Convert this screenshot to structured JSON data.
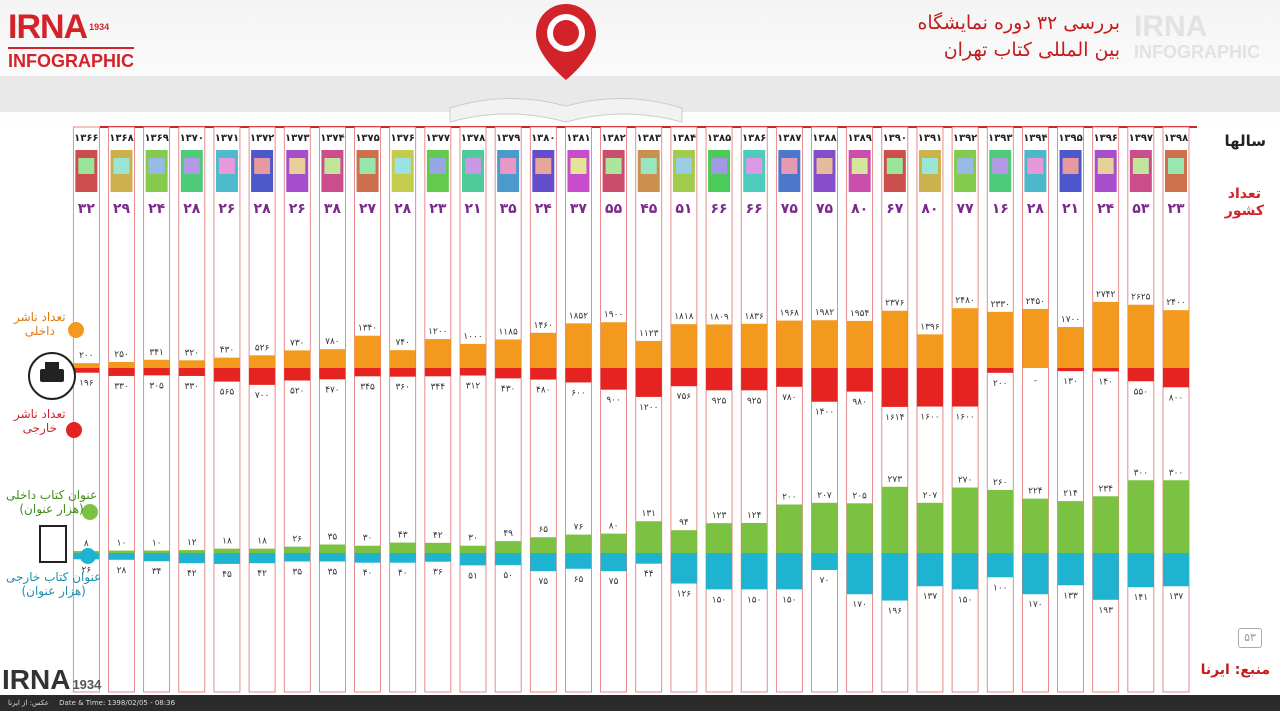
{
  "header": {
    "brand": "IRNA",
    "brand_year": "1934",
    "brand_sub": "INFOGRAPHIC",
    "title_line1": "بررسی ۳۲ دوره نمایشگاه",
    "title_line2": "بین المللی کتاب تهران"
  },
  "labels": {
    "years_label": "سالها",
    "countries_label_1": "تعداد",
    "countries_label_2": "کشور",
    "domestic_publishers_1": "تعداد ناشر",
    "domestic_publishers_2": "داخلی",
    "foreign_publishers_1": "تعداد ناشر",
    "foreign_publishers_2": "خارجی",
    "domestic_titles_1": "عنوان کتاب داخلی",
    "domestic_titles_2": "(هزار عنوان)",
    "foreign_titles_1": "عنوان کتاب خارجی",
    "foreign_titles_2": "(هزار عنوان)"
  },
  "footer": {
    "source": "منبع: ایرنا",
    "page_number": "۵۳",
    "bottom_brand": "IRNA",
    "bottom_year": "1934",
    "caption": "عکس: از ایرنا",
    "datetime": "Date & Time: 1398/02/05 - 08:36"
  },
  "colors": {
    "accent": "#d2232a",
    "domestic_publishers": "#f39a1e",
    "foreign_publishers": "#e52320",
    "domestic_titles": "#7cc242",
    "foreign_titles": "#1db3d1",
    "country_count": "#7b2a8c"
  },
  "chart_data": {
    "type": "bar",
    "categories": [
      "۱۳۶۶",
      "۱۳۶۸",
      "۱۳۶۹",
      "۱۳۷۰",
      "۱۳۷۱",
      "۱۳۷۲",
      "۱۳۷۳",
      "۱۳۷۴",
      "۱۳۷۵",
      "۱۳۷۶",
      "۱۳۷۷",
      "۱۳۷۸",
      "۱۳۷۹",
      "۱۳۸۰",
      "۱۳۸۱",
      "۱۳۸۲",
      "۱۳۸۳",
      "۱۳۸۴",
      "۱۳۸۵",
      "۱۳۸۶",
      "۱۳۸۷",
      "۱۳۸۸",
      "۱۳۸۹",
      "۱۳۹۰",
      "۱۳۹۱",
      "۱۳۹۲",
      "۱۳۹۳",
      "۱۳۹۴",
      "۱۳۹۵",
      "۱۳۹۶",
      "۱۳۹۷",
      "۱۳۹۸"
    ],
    "countries": [
      32,
      29,
      24,
      28,
      26,
      28,
      26,
      38,
      27,
      28,
      23,
      21,
      35,
      24,
      37,
      55,
      45,
      51,
      66,
      66,
      75,
      75,
      80,
      67,
      80,
      77,
      16,
      28,
      21,
      24,
      53,
      23
    ],
    "series": [
      {
        "name": "تعداد ناشر داخلی",
        "values": [
          200,
          250,
          341,
          320,
          430,
          526,
          730,
          780,
          1340,
          740,
          1200,
          1000,
          1185,
          1460,
          1852,
          1900,
          1123,
          1818,
          1809,
          1836,
          1968,
          1982,
          1954,
          2376,
          1396,
          2480,
          2330,
          2450,
          1700,
          2742,
          2625,
          2400
        ]
      },
      {
        "name": "تعداد ناشر خارجی",
        "values": [
          196,
          330,
          305,
          330,
          565,
          700,
          520,
          470,
          345,
          360,
          344,
          312,
          430,
          480,
          600,
          900,
          1200,
          756,
          925,
          925,
          780,
          1400,
          980,
          1614,
          1600,
          1600,
          200,
          null,
          130,
          140,
          550,
          800
        ]
      },
      {
        "name": "عنوان کتاب داخلی",
        "values": [
          8,
          10,
          10,
          12,
          18,
          18,
          26,
          35,
          30,
          43,
          42,
          30,
          49,
          65,
          76,
          80,
          131,
          94,
          123,
          124,
          200,
          207,
          205,
          273,
          207,
          270,
          260,
          224,
          214,
          234,
          300,
          300
        ]
      },
      {
        "name": "عنوان کتاب خارجی",
        "values": [
          26,
          28,
          34,
          42,
          45,
          42,
          35,
          35,
          40,
          40,
          36,
          51,
          50,
          75,
          65,
          75,
          44,
          126,
          150,
          150,
          150,
          70,
          170,
          196,
          137,
          150,
          100,
          170,
          133,
          193,
          141,
          137
        ]
      }
    ],
    "missing_foreign_publisher_label": "-"
  }
}
